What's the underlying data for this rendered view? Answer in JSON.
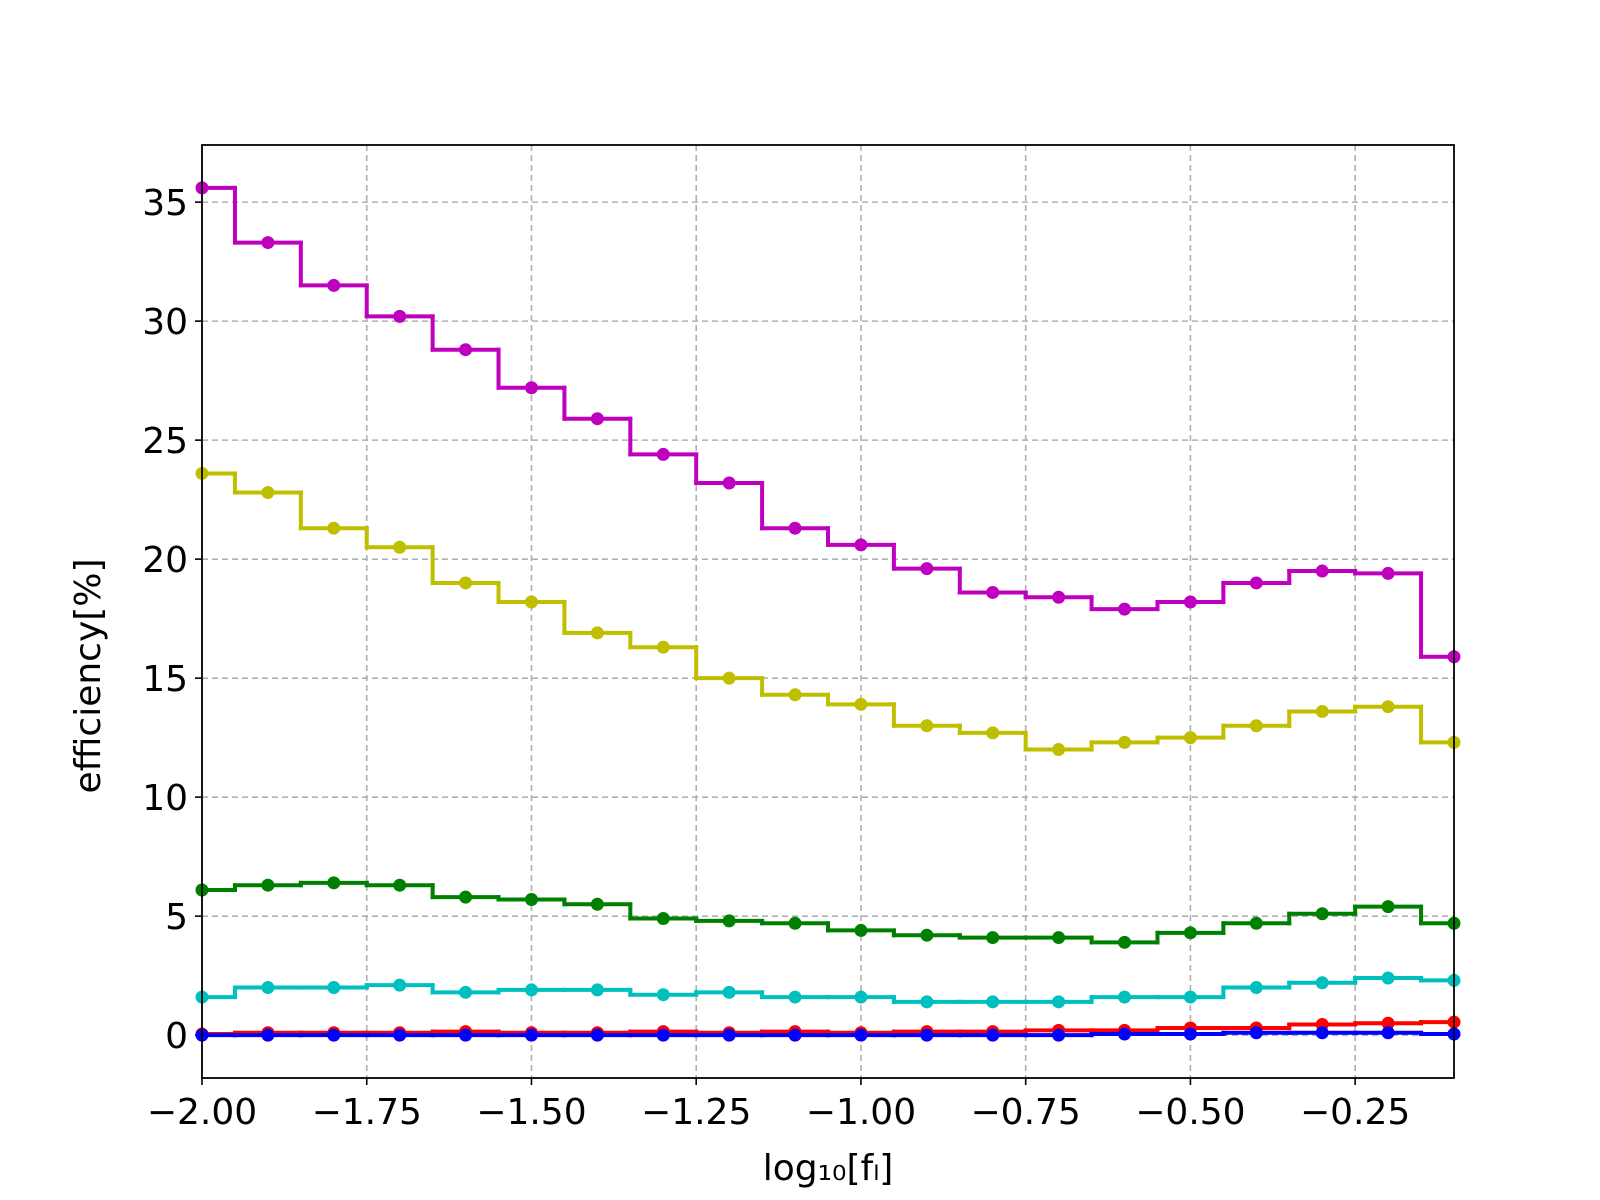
{
  "chart_data": {
    "type": "step",
    "x_label": "log₁₀[fₗ]",
    "y_label": "efficiency[%]",
    "x": [
      -2.0,
      -1.9,
      -1.8,
      -1.7,
      -1.6,
      -1.5,
      -1.4,
      -1.3,
      -1.2,
      -1.1,
      -1.0,
      -0.9,
      -0.8,
      -0.7,
      -0.6,
      -0.5,
      -0.4,
      -0.3,
      -0.2,
      -0.1
    ],
    "series": [
      {
        "color": "#bf00bf",
        "values": [
          35.6,
          33.3,
          31.5,
          30.2,
          28.8,
          27.2,
          25.9,
          24.4,
          23.2,
          21.3,
          20.6,
          19.6,
          18.6,
          18.4,
          17.9,
          18.2,
          19.0,
          19.5,
          19.4,
          15.9
        ]
      },
      {
        "color": "#bfbf00",
        "values": [
          23.6,
          22.8,
          21.3,
          20.5,
          19.0,
          18.2,
          16.9,
          16.3,
          15.0,
          14.3,
          13.9,
          13.0,
          12.7,
          12.0,
          12.3,
          12.5,
          13.0,
          13.6,
          13.8,
          12.3
        ]
      },
      {
        "color": "#008000",
        "values": [
          6.1,
          6.3,
          6.4,
          6.3,
          5.8,
          5.7,
          5.5,
          4.9,
          4.8,
          4.7,
          4.4,
          4.2,
          4.1,
          4.1,
          3.9,
          4.3,
          4.7,
          5.1,
          5.4,
          4.7
        ]
      },
      {
        "color": "#00bfbf",
        "values": [
          1.6,
          2.0,
          2.0,
          2.1,
          1.8,
          1.9,
          1.9,
          1.7,
          1.8,
          1.6,
          1.6,
          1.4,
          1.4,
          1.4,
          1.6,
          1.6,
          2.0,
          2.2,
          2.4,
          2.3
        ]
      },
      {
        "color": "#ff0000",
        "values": [
          0.05,
          0.1,
          0.1,
          0.1,
          0.15,
          0.1,
          0.1,
          0.15,
          0.1,
          0.15,
          0.1,
          0.15,
          0.15,
          0.2,
          0.2,
          0.3,
          0.3,
          0.45,
          0.5,
          0.55
        ]
      },
      {
        "color": "#0000ff",
        "values": [
          0,
          0,
          0,
          0,
          0,
          0,
          0,
          0,
          0,
          0,
          0,
          0,
          0,
          0,
          0.05,
          0.05,
          0.1,
          0.1,
          0.1,
          0.05
        ]
      }
    ],
    "xlim": [
      -2.0,
      -0.1
    ],
    "ylim": [
      -1.8,
      37.4
    ],
    "xticks": [
      {
        "value": -2.0,
        "label": "−2.00"
      },
      {
        "value": -1.75,
        "label": "−1.75"
      },
      {
        "value": -1.5,
        "label": "−1.50"
      },
      {
        "value": -1.25,
        "label": "−1.25"
      },
      {
        "value": -1.0,
        "label": "−1.00"
      },
      {
        "value": -0.75,
        "label": "−0.75"
      },
      {
        "value": -0.5,
        "label": "−0.50"
      },
      {
        "value": -0.25,
        "label": "−0.25"
      }
    ],
    "yticks": [
      0,
      5,
      10,
      15,
      20,
      25,
      30,
      35
    ],
    "grid": true
  }
}
